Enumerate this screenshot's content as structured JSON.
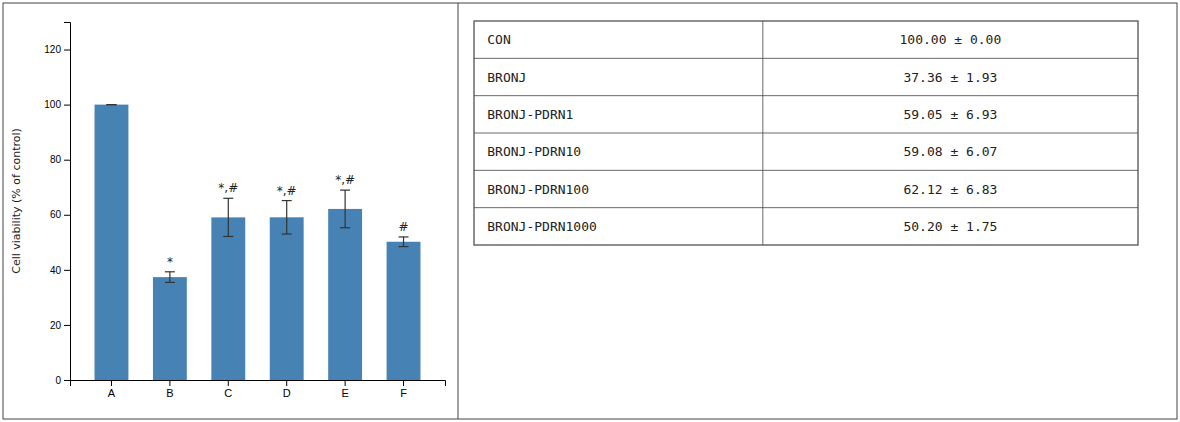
{
  "chart_data": {
    "type": "bar",
    "categories": [
      "A",
      "B",
      "C",
      "D",
      "E",
      "F"
    ],
    "values": [
      100.0,
      37.36,
      59.05,
      59.08,
      62.12,
      50.2
    ],
    "errors": [
      0.0,
      1.93,
      6.93,
      6.07,
      6.83,
      1.75
    ],
    "annotations": [
      null,
      "*",
      "*,#",
      "*,#",
      "*,#",
      "#"
    ],
    "ylabel": "Cell viability (% of control)",
    "ylim": [
      0,
      130
    ],
    "yticks": [
      0,
      20,
      40,
      60,
      80,
      100,
      120
    ],
    "color": "#4682b4",
    "grid": false,
    "table_labels": [
      "CON",
      "BRONJ",
      "BRONJ-PDRN1",
      "BRONJ-PDRN10",
      "BRONJ-PDRN100",
      "BRONJ-PDRN1000"
    ],
    "table_values": [
      "100.00 ± 0.00",
      "37.36 ± 1.93",
      "59.05 ± 6.93",
      "59.08 ± 6.07",
      "62.12 ± 6.83",
      "50.20 ± 1.75"
    ]
  }
}
